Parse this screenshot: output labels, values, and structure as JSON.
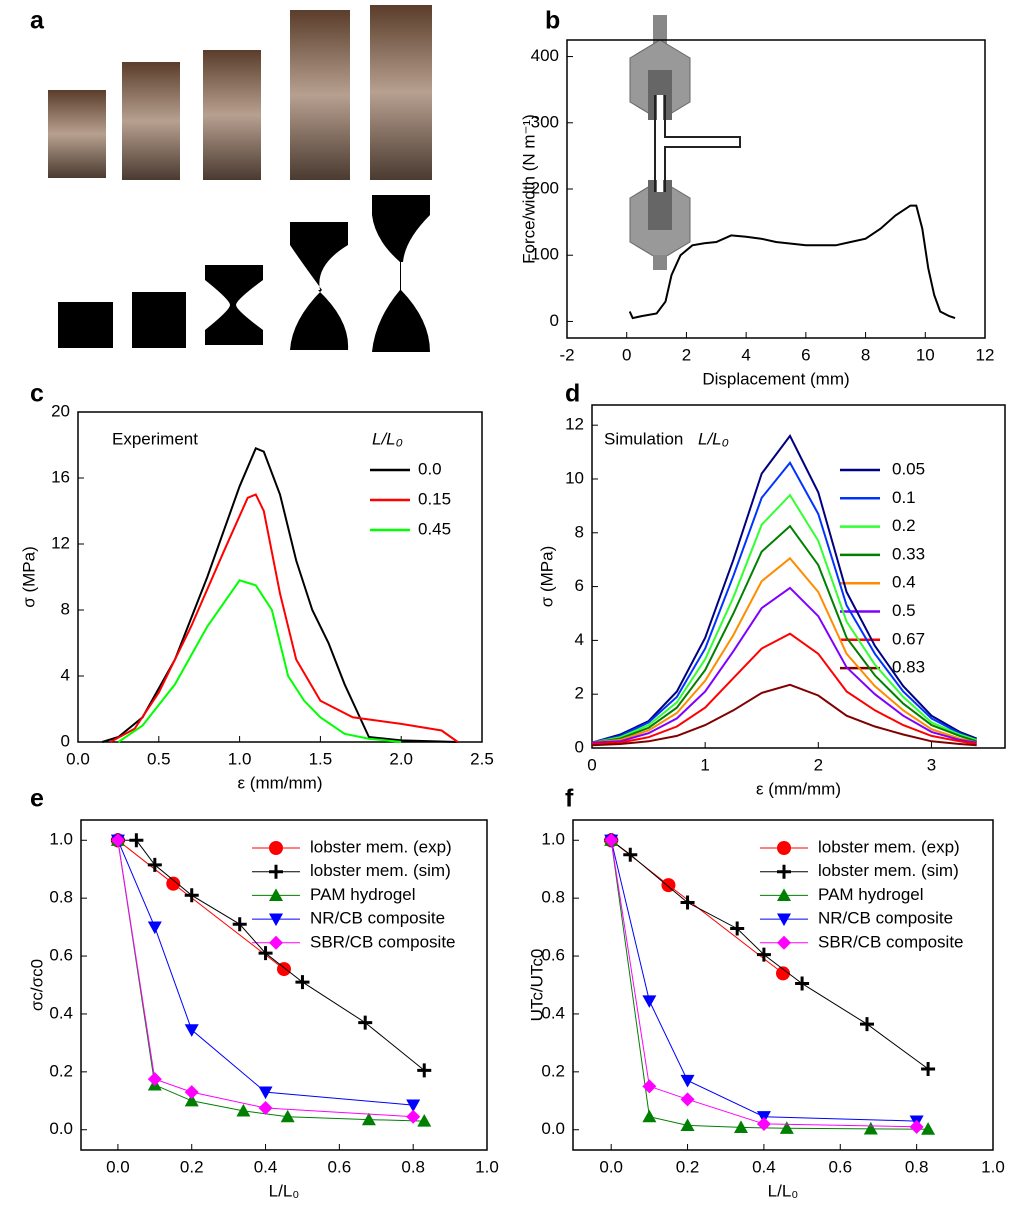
{
  "panel_a": {
    "panel_label": "a"
  },
  "chart_data": [
    {
      "type": "line",
      "panel_label": "b",
      "x_label": "Displacement (mm)",
      "y_label": "Force/width (N m⁻¹)",
      "xlim": [
        -2,
        12
      ],
      "ylim": [
        -25,
        425
      ],
      "xticks": [
        -2,
        0,
        2,
        4,
        6,
        8,
        10,
        12
      ],
      "yticks": [
        0,
        100,
        200,
        300,
        400
      ],
      "series": [
        {
          "color": "#000000",
          "x": [
            0.1,
            0.2,
            0.5,
            1.0,
            1.3,
            1.5,
            1.8,
            2.2,
            2.6,
            3.0,
            3.5,
            4.0,
            4.5,
            5.0,
            6.0,
            7.0,
            7.5,
            8.0,
            8.5,
            9.0,
            9.5,
            9.7,
            9.9,
            10.1,
            10.3,
            10.5,
            10.8,
            11.0
          ],
          "values": [
            15,
            5,
            8,
            12,
            30,
            70,
            100,
            115,
            118,
            120,
            130,
            128,
            125,
            120,
            115,
            115,
            120,
            125,
            140,
            160,
            175,
            175,
            140,
            80,
            40,
            15,
            8,
            5
          ]
        }
      ]
    },
    {
      "type": "line",
      "panel_label": "c",
      "annotation": "Experiment",
      "legend_title": "L/L₀",
      "legend": "upper right",
      "x_label": "ε (mm/mm)",
      "y_label": "σ (MPa)",
      "xlim": [
        0,
        2.5
      ],
      "ylim": [
        0,
        20
      ],
      "xticks": [
        {
          "value": 0,
          "label": "0.0"
        },
        0.5,
        {
          "value": 1,
          "label": "1.0"
        },
        1.5,
        {
          "value": 2,
          "label": "2.0"
        },
        2.5
      ],
      "yticks": [
        0,
        4,
        8,
        12,
        16,
        20
      ],
      "series": [
        {
          "name": "0.0",
          "color": "#000000",
          "x": [
            0.15,
            0.25,
            0.4,
            0.6,
            0.8,
            1.0,
            1.1,
            1.15,
            1.25,
            1.35,
            1.45,
            1.55,
            1.65,
            1.72,
            1.8,
            2.0,
            2.35
          ],
          "values": [
            0,
            0.3,
            1.5,
            5,
            10,
            15.5,
            17.8,
            17.6,
            15,
            11,
            8,
            6,
            3.5,
            2,
            0.3,
            0.1,
            0
          ]
        },
        {
          "name": "0.15",
          "color": "#ff0000",
          "x": [
            0.2,
            0.35,
            0.5,
            0.7,
            0.9,
            1.05,
            1.1,
            1.15,
            1.25,
            1.35,
            1.5,
            1.7,
            2.0,
            2.25,
            2.35
          ],
          "values": [
            0,
            0.8,
            3,
            7,
            11.5,
            14.8,
            15,
            14,
            9,
            5,
            2.5,
            1.5,
            1.1,
            0.7,
            0
          ]
        },
        {
          "name": "0.45",
          "color": "#00ff00",
          "x": [
            0.25,
            0.4,
            0.6,
            0.8,
            1.0,
            1.1,
            1.2,
            1.3,
            1.4,
            1.5,
            1.65,
            1.8,
            2.0
          ],
          "values": [
            0,
            1,
            3.5,
            7,
            9.8,
            9.5,
            8,
            4,
            2.5,
            1.5,
            0.5,
            0.2,
            0
          ]
        }
      ]
    },
    {
      "type": "line",
      "panel_label": "d",
      "annotation": "Simulation",
      "legend_title": "L/L₀",
      "legend": "upper right",
      "x_label": "ε (mm/mm)",
      "y_label": "σ (MPa)",
      "xlim": [
        0,
        3.65
      ],
      "ylim": [
        0,
        12.75
      ],
      "xticks": [
        0,
        1,
        2,
        3
      ],
      "yticks": [
        0,
        2,
        4,
        6,
        8,
        10,
        12
      ],
      "x": [
        0,
        0.25,
        0.5,
        0.75,
        1,
        1.25,
        1.5,
        1.75,
        2,
        2.25,
        2.5,
        2.75,
        3,
        3.25,
        3.4
      ],
      "series": [
        {
          "name": "0.05",
          "color": "#000080",
          "values": [
            0.2,
            0.5,
            1.0,
            2.1,
            4.1,
            7.0,
            10.2,
            11.6,
            9.5,
            5.8,
            3.8,
            2.3,
            1.2,
            0.6,
            0.35
          ]
        },
        {
          "name": "0.1",
          "color": "#0033ff",
          "values": [
            0.2,
            0.45,
            0.95,
            1.9,
            3.7,
            6.4,
            9.3,
            10.6,
            8.7,
            5.3,
            3.5,
            2.1,
            1.1,
            0.55,
            0.3
          ]
        },
        {
          "name": "0.2",
          "color": "#33ff33",
          "values": [
            0.2,
            0.4,
            0.85,
            1.7,
            3.3,
            5.6,
            8.3,
            9.4,
            7.7,
            4.7,
            3.1,
            1.9,
            0.95,
            0.5,
            0.3
          ]
        },
        {
          "name": "0.33",
          "color": "#008000",
          "values": [
            0.2,
            0.35,
            0.75,
            1.5,
            2.9,
            5.0,
            7.3,
            8.25,
            6.8,
            4.1,
            2.7,
            1.65,
            0.85,
            0.45,
            0.25
          ]
        },
        {
          "name": "0.4",
          "color": "#ff8c00",
          "values": [
            0.2,
            0.3,
            0.65,
            1.3,
            2.5,
            4.2,
            6.2,
            7.05,
            5.8,
            3.5,
            2.3,
            1.4,
            0.7,
            0.35,
            0.2
          ]
        },
        {
          "name": "0.5",
          "color": "#8000ff",
          "values": [
            0.2,
            0.25,
            0.55,
            1.1,
            2.1,
            3.6,
            5.2,
            5.95,
            4.9,
            3.0,
            2.0,
            1.2,
            0.6,
            0.3,
            0.2
          ]
        },
        {
          "name": "0.67",
          "color": "#ff0000",
          "values": [
            0.15,
            0.2,
            0.4,
            0.8,
            1.5,
            2.6,
            3.7,
            4.25,
            3.5,
            2.1,
            1.4,
            0.85,
            0.45,
            0.25,
            0.15
          ]
        },
        {
          "name": "0.83",
          "color": "#800000",
          "values": [
            0.1,
            0.15,
            0.25,
            0.45,
            0.85,
            1.4,
            2.05,
            2.35,
            1.95,
            1.2,
            0.8,
            0.5,
            0.25,
            0.15,
            0.1
          ]
        }
      ]
    },
    {
      "type": "line",
      "panel_label": "e",
      "legend": "upper right",
      "x_label": "L/L₀",
      "y_label": "σc/σc0",
      "xlim": [
        -0.1,
        1.0
      ],
      "ylim": [
        -0.07,
        1.07
      ],
      "xticks": [
        {
          "value": 0,
          "label": "0.0"
        },
        0.2,
        0.4,
        0.6,
        0.8,
        {
          "value": 1,
          "label": "1.0"
        }
      ],
      "yticks": [
        {
          "value": 0,
          "label": "0.0"
        },
        0.2,
        0.4,
        0.6,
        0.8,
        {
          "value": 1,
          "label": "1.0"
        }
      ],
      "series": [
        {
          "name": "lobster mem. (exp)",
          "color": "#ff0000",
          "marker": "circle",
          "x": [
            0,
            0.15,
            0.45
          ],
          "values": [
            1,
            0.85,
            0.555
          ]
        },
        {
          "name": "lobster mem. (sim)",
          "color": "#000000",
          "marker": "plus",
          "x": [
            0,
            0.05,
            0.1,
            0.2,
            0.33,
            0.4,
            0.5,
            0.67,
            0.83
          ],
          "values": [
            1,
            1,
            0.915,
            0.81,
            0.71,
            0.61,
            0.51,
            0.37,
            0.205
          ]
        },
        {
          "name": "PAM hydrogel",
          "color": "#008000",
          "marker": "triangle-up",
          "x": [
            0,
            0.1,
            0.2,
            0.34,
            0.46,
            0.68,
            0.83
          ],
          "values": [
            1,
            0.155,
            0.1,
            0.065,
            0.045,
            0.035,
            0.03
          ]
        },
        {
          "name": "NR/CB composite",
          "color": "#0000ff",
          "marker": "triangle-down",
          "x": [
            0,
            0.1,
            0.2,
            0.4,
            0.8
          ],
          "values": [
            1,
            0.7,
            0.345,
            0.13,
            0.085
          ]
        },
        {
          "name": "SBR/CB composite",
          "color": "#ff00ff",
          "marker": "diamond",
          "x": [
            0,
            0.1,
            0.2,
            0.4,
            0.8
          ],
          "values": [
            1,
            0.175,
            0.13,
            0.075,
            0.045
          ]
        }
      ]
    },
    {
      "type": "line",
      "panel_label": "f",
      "legend": "upper right",
      "x_label": "L/L₀",
      "y_label": "UTc/UTc0",
      "xlim": [
        -0.1,
        1.0
      ],
      "ylim": [
        -0.07,
        1.07
      ],
      "xticks": [
        {
          "value": 0,
          "label": "0.0"
        },
        0.2,
        0.4,
        0.6,
        0.8,
        {
          "value": 1,
          "label": "1.0"
        }
      ],
      "yticks": [
        {
          "value": 0,
          "label": "0.0"
        },
        0.2,
        0.4,
        0.6,
        0.8,
        {
          "value": 1,
          "label": "1.0"
        }
      ],
      "series": [
        {
          "name": "lobster mem. (exp)",
          "color": "#ff0000",
          "marker": "circle",
          "x": [
            0,
            0.15,
            0.45
          ],
          "values": [
            1,
            0.845,
            0.54
          ]
        },
        {
          "name": "lobster mem. (sim)",
          "color": "#000000",
          "marker": "plus",
          "x": [
            0,
            0.05,
            0.2,
            0.33,
            0.4,
            0.5,
            0.67,
            0.83
          ],
          "values": [
            1,
            0.95,
            0.785,
            0.695,
            0.605,
            0.505,
            0.365,
            0.21
          ]
        },
        {
          "name": "PAM hydrogel",
          "color": "#008000",
          "marker": "triangle-up",
          "x": [
            0,
            0.1,
            0.2,
            0.34,
            0.46,
            0.68,
            0.83
          ],
          "values": [
            1,
            0.045,
            0.015,
            0.008,
            0.005,
            0.003,
            0.002
          ]
        },
        {
          "name": "NR/CB composite",
          "color": "#0000ff",
          "marker": "triangle-down",
          "x": [
            0,
            0.1,
            0.2,
            0.4,
            0.8
          ],
          "values": [
            1,
            0.445,
            0.17,
            0.045,
            0.03
          ]
        },
        {
          "name": "SBR/CB composite",
          "color": "#ff00ff",
          "marker": "diamond",
          "x": [
            0,
            0.1,
            0.2,
            0.4,
            0.8
          ],
          "values": [
            1,
            0.15,
            0.105,
            0.02,
            0.01
          ]
        }
      ]
    }
  ]
}
